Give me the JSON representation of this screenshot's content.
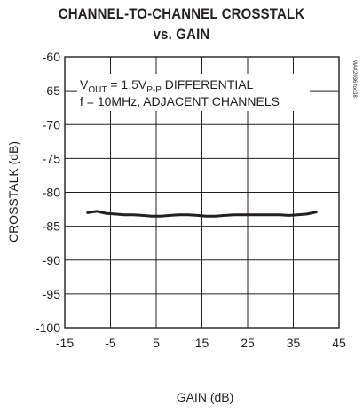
{
  "chart_data": {
    "type": "line",
    "title_line1": "CHANNEL-TO-CHANNEL CROSSTALK",
    "title_line2": "vs. GAIN",
    "xlabel": "GAIN (dB)",
    "ylabel": "CROSSTALK (dB)",
    "xlim": [
      -15,
      45
    ],
    "ylim": [
      -100,
      -60
    ],
    "xticks": [
      "-15",
      "-5",
      "5",
      "15",
      "25",
      "35",
      "45"
    ],
    "yticks": [
      "-60",
      "-65",
      "-70",
      "-75",
      "-80",
      "-85",
      "-90",
      "-95",
      "-100"
    ],
    "grid": true,
    "annotation": {
      "line1_prefix": "V",
      "line1_sub": "OUT",
      "line1_mid": " = 1.5V",
      "line1_sub2": "P-P",
      "line1_suffix": " DIFFERENTIAL",
      "line2": "f = 10MHz, ADJACENT CHANNELS"
    },
    "part_number": "MAX2036 toc08",
    "series": [
      {
        "x": [
          -10,
          -8,
          -6,
          -4,
          -2,
          0,
          2,
          4,
          6,
          8,
          10,
          12,
          14,
          16,
          18,
          20,
          22,
          24,
          26,
          28,
          30,
          32,
          34,
          36,
          38,
          40
        ],
        "values": [
          -83.0,
          -82.8,
          -83.1,
          -83.2,
          -83.3,
          -83.3,
          -83.4,
          -83.5,
          -83.5,
          -83.4,
          -83.3,
          -83.3,
          -83.4,
          -83.5,
          -83.5,
          -83.4,
          -83.3,
          -83.3,
          -83.3,
          -83.3,
          -83.3,
          -83.3,
          -83.4,
          -83.3,
          -83.2,
          -82.9
        ]
      }
    ],
    "colors": {
      "line": "#231f20",
      "grid": "#231f20",
      "axis": "#231f20"
    }
  }
}
